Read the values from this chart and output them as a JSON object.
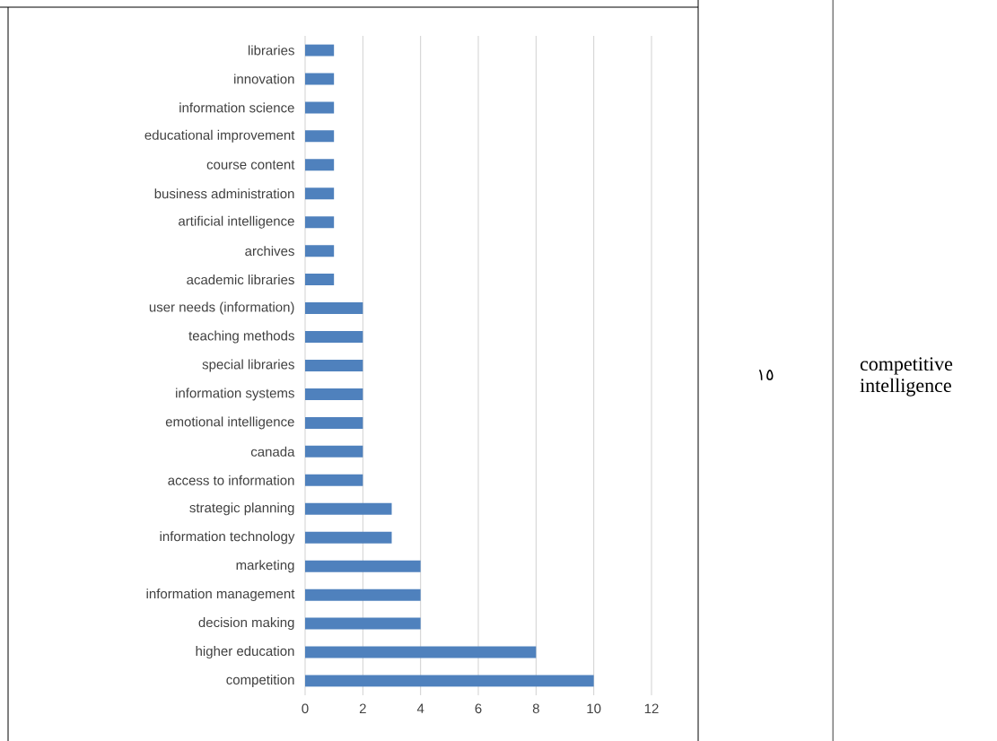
{
  "chart_data": {
    "type": "bar",
    "orientation": "horizontal",
    "categories": [
      "libraries",
      "innovation",
      "information science",
      "educational improvement",
      "course content",
      "business administration",
      "artificial intelligence",
      "archives",
      "academic libraries",
      "user needs (information)",
      "teaching methods",
      "special libraries",
      "information systems",
      "emotional intelligence",
      "canada",
      "access to information",
      "strategic planning",
      "information technology",
      "marketing",
      "information management",
      "decision making",
      "higher education",
      "competition"
    ],
    "values": [
      1,
      1,
      1,
      1,
      1,
      1,
      1,
      1,
      1,
      2,
      2,
      2,
      2,
      2,
      2,
      2,
      3,
      3,
      4,
      4,
      4,
      8,
      10
    ],
    "color": "#4f81bd",
    "xlim": [
      0,
      12
    ],
    "xticks": [
      0,
      2,
      4,
      6,
      8,
      10,
      12
    ],
    "grid": "x",
    "annotations": [
      "١٥",
      "competitive intelligence"
    ]
  }
}
